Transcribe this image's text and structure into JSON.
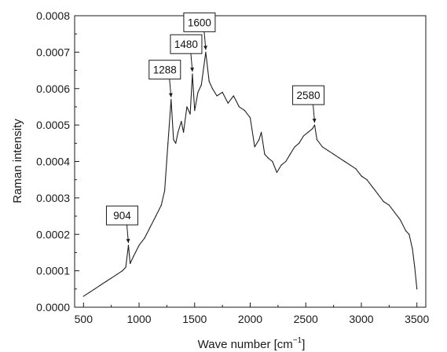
{
  "chart_data": {
    "type": "line",
    "title": "",
    "xlabel": "Wave number [cm",
    "xlabel_unit_exponent": "−1",
    "xlabel_close": "]",
    "ylabel": "Raman intensity",
    "xlim": [
      420,
      3580
    ],
    "ylim": [
      0.0,
      0.0008
    ],
    "grid": false,
    "x_ticks": [
      {
        "value": 500,
        "label": "500"
      },
      {
        "value": 1000,
        "label": "1000"
      },
      {
        "value": 1500,
        "label": "1500"
      },
      {
        "value": 2000,
        "label": "2000"
      },
      {
        "value": 2500,
        "label": "2500"
      },
      {
        "value": 3000,
        "label": "3000"
      },
      {
        "value": 3500,
        "label": "3500"
      }
    ],
    "y_ticks": [
      {
        "value": 0.0,
        "label": "0.0000"
      },
      {
        "value": 0.0001,
        "label": "0.0001"
      },
      {
        "value": 0.0002,
        "label": "0.0002"
      },
      {
        "value": 0.0003,
        "label": "0.0003"
      },
      {
        "value": 0.0004,
        "label": "0.0004"
      },
      {
        "value": 0.0005,
        "label": "0.0005"
      },
      {
        "value": 0.0006,
        "label": "0.0006"
      },
      {
        "value": 0.0007,
        "label": "0.0007"
      },
      {
        "value": 0.0008,
        "label": "0.0008"
      }
    ],
    "series": [
      {
        "color": "#1f1f1f",
        "x": [
          500,
          550,
          600,
          650,
          700,
          750,
          800,
          850,
          880,
          904,
          920,
          950,
          1000,
          1050,
          1100,
          1150,
          1200,
          1230,
          1260,
          1288,
          1310,
          1330,
          1350,
          1380,
          1400,
          1430,
          1460,
          1480,
          1500,
          1530,
          1560,
          1600,
          1630,
          1660,
          1700,
          1750,
          1800,
          1850,
          1900,
          1950,
          2000,
          2040,
          2080,
          2100,
          2130,
          2160,
          2200,
          2240,
          2280,
          2320,
          2360,
          2400,
          2440,
          2480,
          2520,
          2560,
          2580,
          2600,
          2650,
          2700,
          2750,
          2800,
          2850,
          2900,
          2950,
          3000,
          3050,
          3100,
          3150,
          3200,
          3250,
          3300,
          3350,
          3400,
          3430,
          3460,
          3480,
          3500
        ],
        "y": [
          3e-05,
          4e-05,
          5e-05,
          6e-05,
          7e-05,
          8e-05,
          9e-05,
          0.0001,
          0.00011,
          0.00017,
          0.00012,
          0.00014,
          0.00017,
          0.00019,
          0.00022,
          0.00025,
          0.00028,
          0.00032,
          0.00045,
          0.00057,
          0.00046,
          0.00045,
          0.00048,
          0.00051,
          0.00048,
          0.00055,
          0.00053,
          0.00064,
          0.00054,
          0.00059,
          0.00061,
          0.0007,
          0.00062,
          0.0006,
          0.00058,
          0.00059,
          0.00056,
          0.00058,
          0.00055,
          0.00054,
          0.00052,
          0.00044,
          0.00046,
          0.00048,
          0.00042,
          0.00041,
          0.0004,
          0.00037,
          0.00039,
          0.0004,
          0.00042,
          0.00044,
          0.00045,
          0.00047,
          0.00048,
          0.00049,
          0.0005,
          0.00046,
          0.00044,
          0.00043,
          0.00042,
          0.00041,
          0.0004,
          0.00039,
          0.00038,
          0.00036,
          0.00035,
          0.00033,
          0.00031,
          0.00029,
          0.00028,
          0.00026,
          0.00024,
          0.00021,
          0.0002,
          0.00016,
          0.00011,
          5e-05
        ]
      }
    ],
    "annotations": [
      {
        "text": "904",
        "x": 904,
        "y": 0.00017
      },
      {
        "text": "1288",
        "x": 1288,
        "y": 0.00057
      },
      {
        "text": "1480",
        "x": 1480,
        "y": 0.00064
      },
      {
        "text": "1600",
        "x": 1600,
        "y": 0.0007
      },
      {
        "text": "2580",
        "x": 2580,
        "y": 0.0005
      }
    ]
  }
}
